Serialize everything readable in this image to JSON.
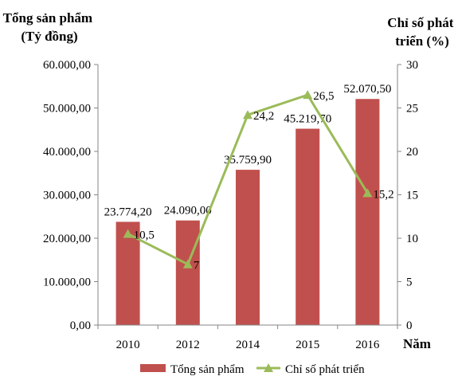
{
  "chart_data": {
    "type": "bar",
    "categories": [
      "2010",
      "2012",
      "2014",
      "2015",
      "2016"
    ],
    "xlabel": "Năm",
    "y_left": {
      "title_lines": [
        "Tổng sản phẩm",
        "(Tỷ đồng)"
      ],
      "lim": [
        0,
        60000
      ],
      "ticks": [
        "0,00",
        "10.000,00",
        "20.000,00",
        "30.000,00",
        "40.000,00",
        "50.000,00",
        "60.000,00"
      ]
    },
    "y_right": {
      "title_lines": [
        "Chỉ số phát",
        "triển (%)"
      ],
      "lim": [
        0,
        30
      ],
      "ticks": [
        "0",
        "5",
        "10",
        "15",
        "20",
        "25",
        "30"
      ]
    },
    "series": [
      {
        "name": "Tổng sản phẩm",
        "type": "bar",
        "axis": "left",
        "color": "#c0504d",
        "values": [
          23774.2,
          24090.0,
          35759.9,
          45219.7,
          52070.5
        ],
        "labels": [
          "23.774,20",
          "24.090,00",
          "35.759,90",
          "45.219,70",
          "52.070,50"
        ]
      },
      {
        "name": "Chỉ số phát triển",
        "type": "line",
        "axis": "right",
        "color": "#9bbb59",
        "marker": "triangle",
        "values": [
          10.5,
          7,
          24.2,
          26.5,
          15.2
        ],
        "labels": [
          "10,5",
          "7",
          "24,2",
          "26,5",
          "15,2"
        ]
      }
    ],
    "legend_position": "bottom",
    "grid": false
  }
}
